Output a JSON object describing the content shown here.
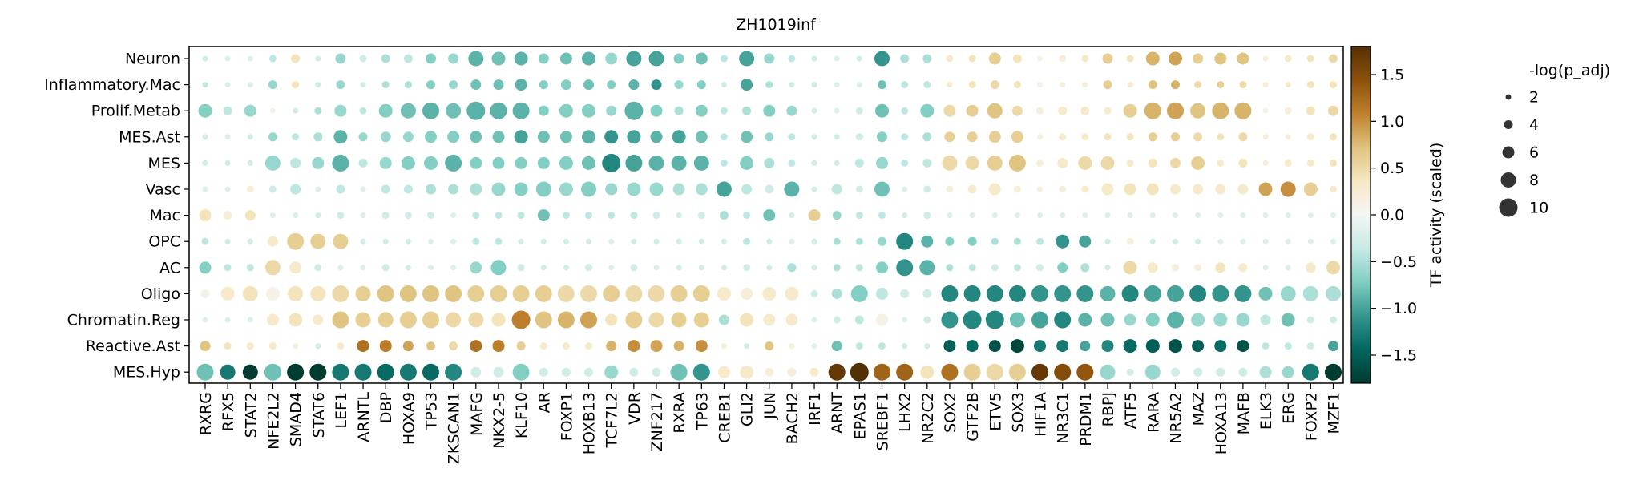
{
  "chart_data": {
    "type": "dotplot",
    "title": "ZH1019inf",
    "rows": [
      "Neuron",
      "Inflammatory.Mac",
      "Prolif.Metab",
      "MES.Ast",
      "MES",
      "Vasc",
      "Mac",
      "OPC",
      "AC",
      "Oligo",
      "Chromatin.Reg",
      "Reactive.Ast",
      "MES.Hyp"
    ],
    "columns": [
      "RXRG",
      "RFX5",
      "STAT2",
      "NFE2L2",
      "SMAD4",
      "STAT6",
      "LEF1",
      "ARNTL",
      "DBP",
      "HOXA9",
      "TP53",
      "ZKSCAN1",
      "MAFG",
      "NKX2-5",
      "KLF10",
      "AR",
      "FOXP1",
      "HOXB13",
      "TCF7L2",
      "VDR",
      "ZNF217",
      "RXRA",
      "TP63",
      "CREB1",
      "GLI2",
      "JUN",
      "BACH2",
      "IRF1",
      "ARNT",
      "EPAS1",
      "SREBF1",
      "LHX2",
      "NR2C2",
      "SOX2",
      "GTF2B",
      "ETV5",
      "SOX3",
      "HIF1A",
      "NR3C1",
      "PRDM1",
      "RBPJ",
      "ATF5",
      "RARA",
      "NR5A2",
      "MAZ",
      "HOXA13",
      "MAFB",
      "ELK3",
      "ERG",
      "FOXP2",
      "MZF1"
    ],
    "colorbar": {
      "label": "TF activity (scaled)",
      "vmin": -1.8,
      "vmax": 1.8,
      "ticks": [
        1.5,
        1.0,
        0.5,
        0.0,
        -0.5,
        -1.0,
        -1.5
      ],
      "tick_labels": [
        "1.5",
        "1.0",
        "0.5",
        "0.0",
        "−0.5",
        "−1.0",
        "−1.5"
      ],
      "colormap": "BrBG_r",
      "stops": [
        "#003c30",
        "#01665e",
        "#35978f",
        "#80cdc1",
        "#c7eae5",
        "#f5f5f5",
        "#f6e8c3",
        "#dfc27d",
        "#bf812d",
        "#8c510a",
        "#543005"
      ]
    },
    "size_legend": {
      "title": "-log(p_adj)",
      "values": [
        2,
        4,
        6,
        8,
        10
      ],
      "labels": [
        "2",
        "4",
        "6",
        "8",
        "10"
      ]
    },
    "values": [
      [
        -0.3,
        -0.2,
        -0.2,
        -0.4,
        0.4,
        -0.3,
        -0.6,
        -0.3,
        -0.5,
        -0.4,
        -0.7,
        -0.6,
        -0.9,
        -0.8,
        -0.9,
        -0.7,
        -0.8,
        -0.9,
        -0.6,
        -1.0,
        -1.0,
        -0.7,
        -0.8,
        -0.4,
        -1.0,
        -0.6,
        -0.4,
        -0.3,
        -0.2,
        -0.3,
        -1.1,
        -0.5,
        -0.5,
        0.3,
        0.4,
        0.6,
        0.4,
        0.1,
        0.2,
        0.3,
        0.6,
        0.4,
        0.8,
        0.9,
        0.6,
        0.7,
        0.7,
        0.2,
        0.3,
        0.4,
        0.5
      ],
      [
        -0.4,
        -0.2,
        -0.2,
        -0.6,
        0.4,
        -0.3,
        -0.6,
        -0.3,
        -0.5,
        -0.5,
        -0.7,
        -0.6,
        -0.8,
        -0.8,
        -0.9,
        -0.7,
        -0.7,
        -0.8,
        -0.7,
        -0.9,
        -1.1,
        -0.6,
        -0.7,
        -0.3,
        -1.0,
        -0.5,
        -0.3,
        -0.3,
        -0.2,
        -0.2,
        -0.8,
        -0.4,
        -0.4,
        0.3,
        0.4,
        0.5,
        0.4,
        0.1,
        0.2,
        0.2,
        0.6,
        0.3,
        0.7,
        0.8,
        0.5,
        0.6,
        0.5,
        0.2,
        0.3,
        0.4,
        0.4
      ],
      [
        -0.7,
        -0.4,
        -0.6,
        0.1,
        -0.3,
        -0.5,
        -0.6,
        -0.4,
        -0.7,
        -0.8,
        -0.9,
        -0.8,
        -0.9,
        -0.9,
        -0.9,
        -0.7,
        -0.7,
        -0.7,
        -0.6,
        -0.9,
        -0.7,
        -0.5,
        -0.7,
        -0.4,
        -0.5,
        -0.7,
        -0.6,
        -0.3,
        -0.2,
        -0.3,
        -0.8,
        -0.4,
        -0.7,
        0.5,
        0.6,
        0.7,
        0.5,
        0.2,
        0.3,
        0.3,
        0.3,
        0.6,
        0.8,
        0.9,
        0.7,
        0.8,
        0.8,
        0.1,
        0.2,
        0.4,
        0.5
      ],
      [
        -0.3,
        -0.2,
        -0.3,
        -0.6,
        -0.4,
        -0.5,
        -0.9,
        -0.6,
        -0.6,
        -0.6,
        -0.7,
        -0.7,
        -0.8,
        -0.8,
        -1.0,
        -0.8,
        -0.8,
        -0.9,
        -1.1,
        -1.0,
        -0.9,
        -1.0,
        -0.8,
        -0.4,
        -0.8,
        -0.6,
        -0.4,
        -0.3,
        -0.3,
        -0.3,
        -0.7,
        -0.4,
        -0.5,
        0.6,
        0.6,
        0.6,
        0.6,
        0.2,
        0.3,
        0.3,
        0.4,
        0.4,
        0.6,
        0.6,
        0.5,
        0.4,
        0.5,
        0.2,
        0.2,
        0.3,
        0.4
      ],
      [
        -0.3,
        -0.3,
        -0.3,
        -0.6,
        -0.4,
        -0.6,
        -0.9,
        -0.4,
        -0.6,
        -0.7,
        -0.7,
        -0.9,
        -0.7,
        -0.7,
        -0.7,
        -0.7,
        -0.7,
        -0.8,
        -1.2,
        -1.0,
        -0.9,
        -0.9,
        -0.9,
        -0.4,
        -0.7,
        -0.5,
        -0.4,
        -0.3,
        -0.3,
        -0.4,
        -0.6,
        -0.4,
        -0.4,
        0.5,
        0.5,
        0.6,
        0.7,
        0.2,
        0.3,
        0.5,
        0.5,
        0.3,
        0.4,
        0.5,
        0.6,
        0.3,
        0.4,
        0.2,
        0.3,
        0.3,
        0.4
      ],
      [
        -0.2,
        -0.2,
        0.2,
        -0.3,
        -0.4,
        -0.2,
        -0.4,
        -0.2,
        -0.4,
        -0.4,
        -0.5,
        -0.5,
        -0.5,
        -0.6,
        -0.7,
        -0.7,
        -0.6,
        -0.7,
        -0.6,
        -0.6,
        -0.6,
        -0.5,
        -0.5,
        -1.0,
        -0.4,
        -0.3,
        -0.9,
        -0.3,
        -0.4,
        -0.3,
        -0.8,
        -0.2,
        -0.3,
        0.2,
        0.3,
        0.3,
        0.2,
        0.2,
        0.2,
        0.3,
        0.3,
        0.4,
        0.4,
        0.3,
        0.3,
        0.3,
        0.3,
        0.9,
        1.0,
        0.6,
        0.3
      ],
      [
        0.4,
        0.2,
        0.4,
        -0.2,
        -0.2,
        -0.3,
        -0.3,
        -0.2,
        -0.3,
        -0.3,
        -0.3,
        -0.2,
        -0.4,
        -0.4,
        -0.4,
        -0.8,
        -0.4,
        -0.4,
        -0.4,
        -0.4,
        -0.3,
        -0.3,
        -0.3,
        -0.5,
        -0.4,
        -0.8,
        -0.3,
        0.6,
        -0.6,
        -0.4,
        -0.4,
        -0.3,
        -0.3,
        -0.2,
        -0.2,
        -0.2,
        -0.2,
        -0.2,
        -0.2,
        -0.2,
        -0.2,
        -0.2,
        -0.2,
        -0.2,
        -0.2,
        -0.2,
        -0.2,
        -0.2,
        -0.2,
        -0.2,
        -0.2
      ],
      [
        -0.4,
        -0.3,
        -0.3,
        0.3,
        0.6,
        0.6,
        0.6,
        -0.3,
        -0.3,
        -0.3,
        -0.2,
        -0.2,
        -0.4,
        -0.4,
        -0.3,
        -0.3,
        -0.3,
        -0.3,
        -0.2,
        -0.3,
        -0.3,
        -0.3,
        -0.3,
        -0.3,
        -0.4,
        -0.3,
        -0.2,
        -0.3,
        -0.5,
        -0.5,
        -0.6,
        -1.2,
        -0.9,
        -0.7,
        -0.7,
        -0.5,
        -0.5,
        -0.4,
        -1.1,
        -1.0,
        -0.3,
        0.2,
        -0.3,
        -0.3,
        -0.3,
        -0.2,
        -0.2,
        -0.2,
        -0.2,
        -0.2,
        -0.2
      ],
      [
        -0.7,
        -0.4,
        -0.4,
        0.5,
        0.3,
        -0.3,
        -0.2,
        -0.2,
        -0.3,
        -0.3,
        -0.2,
        -0.2,
        -0.6,
        -0.7,
        -0.3,
        -0.3,
        -0.3,
        -0.3,
        -0.2,
        -0.3,
        -0.2,
        -0.3,
        -0.3,
        -0.3,
        -0.3,
        -0.3,
        -0.5,
        -0.3,
        -0.5,
        -0.4,
        -0.7,
        -1.1,
        -0.9,
        -0.5,
        -0.4,
        -0.3,
        -0.4,
        -0.3,
        -0.7,
        -0.5,
        -0.3,
        0.5,
        0.3,
        0.2,
        0.2,
        0.4,
        0.3,
        -0.2,
        -0.2,
        0.3,
        0.5
      ],
      [
        0.1,
        0.3,
        0.4,
        0.1,
        0.4,
        0.4,
        0.5,
        0.6,
        0.7,
        0.7,
        0.7,
        0.7,
        0.6,
        0.6,
        0.6,
        0.6,
        0.5,
        0.5,
        0.6,
        0.5,
        0.5,
        0.6,
        0.6,
        0.3,
        0.2,
        0.3,
        0.3,
        -0.3,
        -0.5,
        -0.7,
        -0.4,
        -0.3,
        -0.3,
        -1.2,
        -1.2,
        -1.2,
        -1.2,
        -1.1,
        -1.1,
        -1.1,
        -0.9,
        -1.2,
        -1.0,
        -1.0,
        -1.2,
        -1.1,
        -1.1,
        -0.8,
        -0.6,
        -0.5,
        -0.5
      ],
      [
        -0.2,
        -0.2,
        -0.2,
        0.3,
        0.4,
        0.3,
        0.7,
        0.6,
        0.6,
        0.6,
        0.6,
        0.5,
        0.5,
        0.4,
        1.1,
        0.7,
        0.8,
        0.9,
        0.4,
        0.6,
        0.5,
        0.6,
        0.6,
        -0.5,
        0.4,
        0.3,
        0.3,
        -0.2,
        -0.3,
        -0.4,
        0.1,
        -0.2,
        -0.3,
        -1.1,
        -1.2,
        -1.2,
        -0.8,
        -1.0,
        -1.2,
        -0.9,
        -0.8,
        -0.6,
        -0.7,
        -0.9,
        -0.6,
        -0.6,
        -0.6,
        -0.4,
        -0.8,
        -0.3,
        -0.3
      ],
      [
        0.7,
        0.4,
        0.3,
        0.3,
        0.2,
        -0.3,
        0.3,
        1.2,
        1.1,
        0.9,
        0.7,
        0.5,
        1.2,
        1.1,
        0.6,
        0.3,
        0.3,
        0.3,
        0.8,
        1.0,
        0.9,
        0.8,
        1.0,
        0.2,
        -0.3,
        0.7,
        0.2,
        -0.2,
        -0.8,
        -0.4,
        -0.4,
        -0.3,
        -0.3,
        -1.5,
        -1.4,
        -1.6,
        -1.7,
        -1.3,
        -1.3,
        -1.0,
        -1.2,
        -1.4,
        -1.5,
        -1.6,
        -1.5,
        -1.4,
        -1.6,
        -0.4,
        -0.4,
        -0.3,
        -1.0
      ],
      [
        -0.8,
        -1.3,
        -1.8,
        -0.8,
        -1.9,
        -1.9,
        -1.3,
        -1.3,
        -1.4,
        -1.3,
        -1.4,
        -1.2,
        -0.3,
        -0.3,
        -0.7,
        -0.3,
        -0.3,
        -0.3,
        -0.6,
        -0.3,
        -0.3,
        -0.8,
        -1.1,
        0.3,
        0.3,
        0.2,
        0.2,
        0.3,
        1.7,
        1.8,
        1.3,
        1.3,
        0.4,
        1.2,
        0.6,
        0.5,
        0.6,
        1.7,
        1.5,
        1.4,
        -0.6,
        -0.3,
        -0.6,
        -0.3,
        -0.3,
        -0.3,
        -0.3,
        -0.5,
        -0.6,
        -1.3,
        -1.8
      ]
    ],
    "pvalues": [
      [
        2,
        2,
        2,
        3,
        4,
        2,
        5,
        3,
        4,
        4,
        5,
        5,
        8,
        7,
        7,
        5,
        6,
        7,
        6,
        8,
        8,
        5,
        6,
        3,
        8,
        5,
        3,
        2,
        2,
        2,
        8,
        4,
        4,
        3,
        3,
        6,
        4,
        2,
        3,
        3,
        5,
        3,
        7,
        7,
        5,
        6,
        6,
        2,
        3,
        3,
        4
      ],
      [
        2,
        2,
        2,
        4,
        3,
        2,
        4,
        2,
        3,
        3,
        4,
        4,
        5,
        5,
        6,
        4,
        5,
        5,
        4,
        5,
        5,
        4,
        4,
        2,
        6,
        3,
        2,
        2,
        2,
        2,
        4,
        3,
        3,
        2,
        3,
        4,
        3,
        2,
        2,
        2,
        4,
        2,
        4,
        4,
        3,
        3,
        3,
        2,
        2,
        3,
        3
      ],
      [
        7,
        4,
        6,
        2,
        2,
        3,
        6,
        3,
        7,
        8,
        9,
        8,
        10,
        9,
        9,
        5,
        7,
        7,
        5,
        10,
        6,
        4,
        6,
        3,
        4,
        6,
        5,
        2,
        2,
        3,
        7,
        3,
        7,
        6,
        6,
        8,
        5,
        3,
        4,
        4,
        3,
        7,
        9,
        9,
        8,
        9,
        9,
        2,
        3,
        4,
        5
      ],
      [
        2,
        2,
        2,
        4,
        3,
        4,
        7,
        4,
        5,
        5,
        6,
        6,
        6,
        6,
        7,
        6,
        6,
        7,
        7,
        7,
        6,
        7,
        6,
        3,
        6,
        4,
        3,
        2,
        2,
        3,
        5,
        3,
        4,
        5,
        5,
        6,
        6,
        2,
        3,
        3,
        3,
        3,
        4,
        4,
        4,
        3,
        4,
        2,
        2,
        3,
        3
      ],
      [
        2,
        2,
        2,
        8,
        5,
        6,
        9,
        4,
        6,
        7,
        7,
        9,
        6,
        6,
        6,
        6,
        7,
        7,
        10,
        9,
        8,
        8,
        8,
        3,
        7,
        5,
        3,
        2,
        2,
        4,
        6,
        3,
        4,
        8,
        7,
        8,
        9,
        3,
        5,
        7,
        7,
        3,
        4,
        5,
        7,
        3,
        4,
        2,
        3,
        3,
        3
      ],
      [
        2,
        2,
        3,
        3,
        5,
        2,
        4,
        2,
        4,
        4,
        5,
        5,
        6,
        7,
        7,
        8,
        7,
        8,
        6,
        7,
        7,
        6,
        6,
        8,
        5,
        4,
        8,
        2,
        5,
        3,
        8,
        2,
        3,
        3,
        4,
        6,
        3,
        2,
        3,
        3,
        6,
        6,
        6,
        5,
        5,
        5,
        5,
        7,
        8,
        7,
        3
      ],
      [
        6,
        4,
        5,
        2,
        2,
        2,
        3,
        2,
        3,
        3,
        3,
        2,
        3,
        3,
        3,
        6,
        3,
        3,
        3,
        3,
        3,
        2,
        3,
        4,
        3,
        6,
        2,
        6,
        4,
        3,
        3,
        2,
        3,
        2,
        2,
        2,
        2,
        2,
        2,
        2,
        2,
        2,
        2,
        2,
        2,
        2,
        2,
        2,
        2,
        2,
        2
      ],
      [
        3,
        2,
        2,
        5,
        9,
        8,
        8,
        2,
        2,
        2,
        2,
        2,
        3,
        3,
        2,
        2,
        2,
        2,
        2,
        2,
        2,
        2,
        2,
        2,
        3,
        2,
        2,
        2,
        3,
        3,
        4,
        9,
        6,
        4,
        4,
        3,
        3,
        3,
        7,
        6,
        2,
        3,
        2,
        2,
        2,
        2,
        2,
        2,
        2,
        2,
        2
      ],
      [
        6,
        3,
        3,
        8,
        6,
        3,
        2,
        2,
        3,
        2,
        2,
        2,
        6,
        8,
        3,
        2,
        2,
        3,
        2,
        3,
        2,
        2,
        2,
        2,
        3,
        2,
        4,
        2,
        3,
        3,
        6,
        9,
        8,
        3,
        3,
        3,
        3,
        3,
        5,
        4,
        2,
        7,
        5,
        3,
        3,
        5,
        4,
        2,
        2,
        5,
        7
      ],
      [
        4,
        7,
        8,
        7,
        8,
        8,
        9,
        8,
        9,
        9,
        9,
        9,
        9,
        9,
        9,
        9,
        9,
        9,
        9,
        9,
        9,
        9,
        9,
        7,
        6,
        7,
        7,
        3,
        5,
        9,
        6,
        4,
        4,
        9,
        9,
        9,
        9,
        9,
        9,
        9,
        8,
        9,
        9,
        9,
        9,
        9,
        9,
        7,
        8,
        8,
        8
      ],
      [
        2,
        2,
        2,
        6,
        7,
        5,
        9,
        8,
        8,
        9,
        9,
        8,
        8,
        7,
        10,
        9,
        9,
        9,
        6,
        9,
        8,
        8,
        8,
        5,
        7,
        6,
        6,
        2,
        3,
        4,
        6,
        2,
        3,
        9,
        10,
        10,
        8,
        9,
        9,
        7,
        7,
        6,
        7,
        9,
        7,
        7,
        7,
        5,
        7,
        3,
        3
      ],
      [
        5,
        3,
        3,
        3,
        2,
        2,
        3,
        6,
        6,
        5,
        4,
        4,
        6,
        6,
        4,
        3,
        3,
        3,
        5,
        6,
        6,
        5,
        6,
        2,
        2,
        4,
        2,
        2,
        5,
        3,
        3,
        2,
        2,
        6,
        6,
        6,
        7,
        6,
        6,
        5,
        6,
        7,
        7,
        7,
        6,
        6,
        6,
        3,
        3,
        3,
        5
      ],
      [
        9,
        8,
        8,
        9,
        9,
        9,
        9,
        9,
        9,
        9,
        9,
        9,
        5,
        5,
        9,
        4,
        4,
        4,
        7,
        4,
        4,
        9,
        9,
        6,
        7,
        4,
        4,
        4,
        9,
        10,
        9,
        9,
        7,
        9,
        9,
        9,
        9,
        9,
        9,
        9,
        8,
        3,
        8,
        4,
        4,
        4,
        4,
        6,
        6,
        9,
        9
      ]
    ]
  }
}
